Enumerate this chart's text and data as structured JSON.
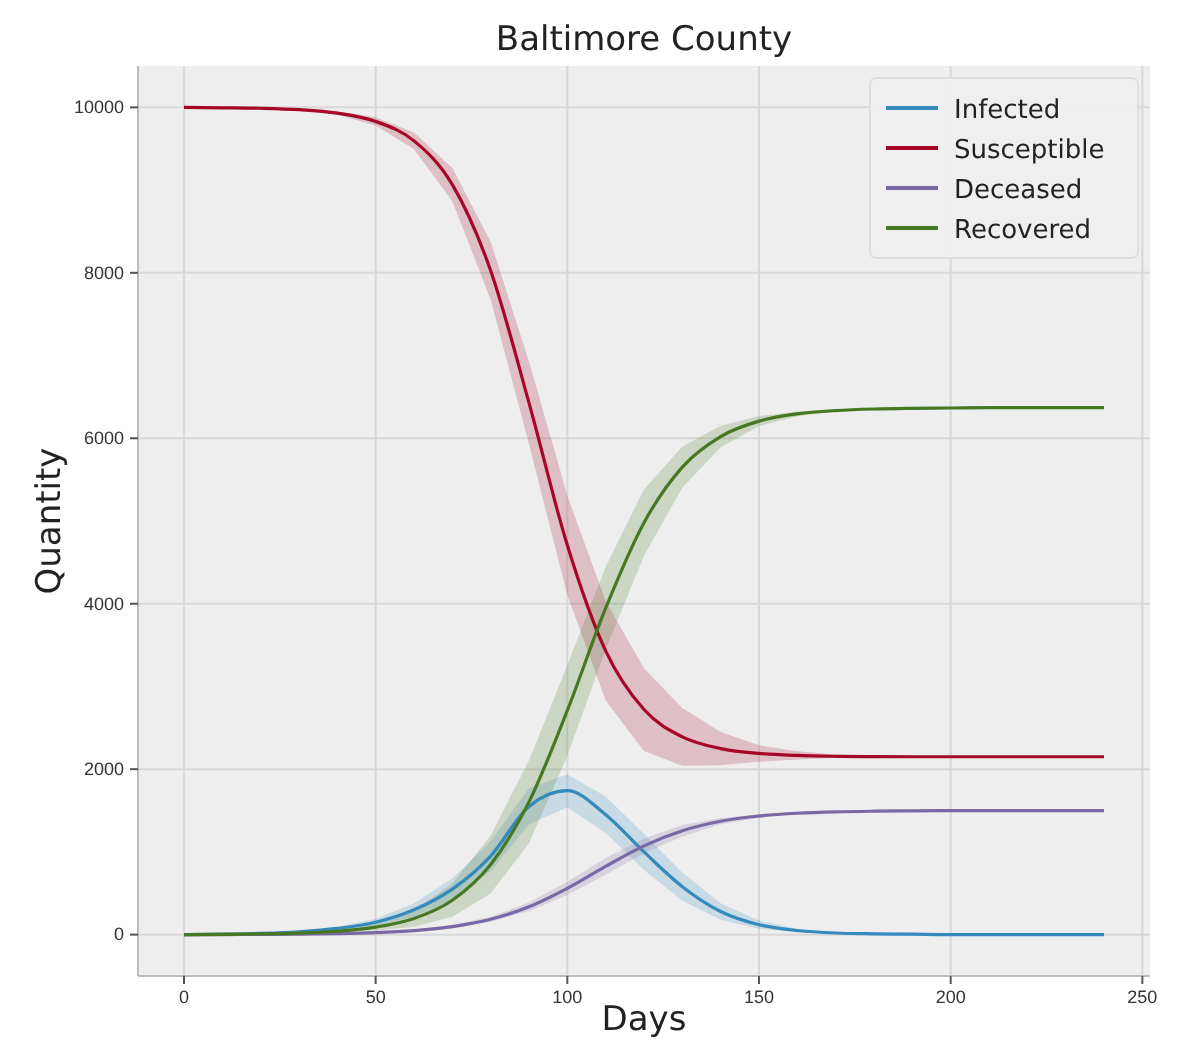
{
  "chart_data": {
    "type": "line",
    "title": "Baltimore County",
    "xlabel": "Days",
    "ylabel": "Quantity",
    "x": [
      0,
      10,
      20,
      30,
      40,
      50,
      60,
      70,
      80,
      90,
      100,
      110,
      120,
      130,
      140,
      150,
      160,
      170,
      180,
      190,
      200,
      210,
      220,
      230,
      240
    ],
    "xlim": [
      -12,
      252
    ],
    "xticks": [
      0,
      50,
      100,
      150,
      200,
      250
    ],
    "ylim": [
      -500,
      10500
    ],
    "yticks": [
      0,
      2000,
      4000,
      6000,
      8000,
      10000
    ],
    "grid": true,
    "legend": "top right",
    "line_style": "solid",
    "series": [
      {
        "name": "Infected",
        "color": "#348abd",
        "values": [
          0,
          5,
          15,
          35,
          75,
          150,
          300,
          550,
          950,
          1550,
          1740,
          1450,
          1000,
          580,
          280,
          120,
          50,
          20,
          10,
          5,
          0,
          0,
          0,
          0,
          0
        ],
        "lower": [
          0,
          5,
          10,
          25,
          55,
          110,
          220,
          420,
          770,
          1330,
          1540,
          1230,
          780,
          410,
          180,
          70,
          30,
          10,
          5,
          5,
          0,
          0,
          0,
          0,
          0
        ],
        "upper": [
          0,
          5,
          20,
          45,
          95,
          190,
          380,
          680,
          1130,
          1770,
          1940,
          1670,
          1220,
          750,
          380,
          170,
          70,
          30,
          15,
          5,
          0,
          0,
          0,
          0,
          0
        ]
      },
      {
        "name": "Susceptible",
        "color": "#a60628",
        "values": [
          10000,
          9995,
          9989,
          9972,
          9930,
          9830,
          9595,
          9066,
          8026,
          6428,
          4707,
          3430,
          2721,
          2391,
          2249,
          2190,
          2166,
          2156,
          2152,
          2150,
          2150,
          2150,
          2150,
          2150,
          2150
        ],
        "lower": [
          10000,
          9995,
          9984,
          9962,
          9910,
          9780,
          9495,
          8866,
          7676,
          5928,
          4107,
          2830,
          2221,
          2041,
          2049,
          2090,
          2116,
          2136,
          2142,
          2145,
          2150,
          2150,
          2150,
          2150,
          2150
        ],
        "upper": [
          10000,
          9995,
          9994,
          9982,
          9950,
          9880,
          9695,
          9266,
          8376,
          6928,
          5307,
          4030,
          3221,
          2741,
          2449,
          2290,
          2216,
          2176,
          2162,
          2155,
          2150,
          2150,
          2150,
          2150,
          2150
        ]
      },
      {
        "name": "Deceased",
        "color": "#7a68a6",
        "values": [
          0,
          1,
          3,
          6,
          12,
          24,
          49,
          97,
          186,
          337,
          560,
          825,
          1073,
          1256,
          1371,
          1434,
          1467,
          1484,
          1492,
          1496,
          1500,
          1500,
          1500,
          1500,
          1500
        ],
        "lower": [
          0,
          1,
          3,
          6,
          12,
          19,
          39,
          77,
          156,
          287,
          480,
          725,
          983,
          1186,
          1331,
          1414,
          1457,
          1479,
          1492,
          1496,
          1500,
          1500,
          1500,
          1500,
          1500
        ],
        "upper": [
          0,
          1,
          3,
          6,
          12,
          29,
          59,
          117,
          216,
          387,
          640,
          925,
          1163,
          1326,
          1411,
          1454,
          1477,
          1489,
          1492,
          1496,
          1500,
          1500,
          1500,
          1500,
          1500
        ]
      },
      {
        "name": "Recovered",
        "color": "#467821",
        "values": [
          0,
          4,
          9,
          19,
          42,
          91,
          196,
          416,
          848,
          1605,
          2710,
          3947,
          4980,
          5652,
          6021,
          6207,
          6295,
          6335,
          6354,
          6362,
          6366,
          6370,
          6370,
          6370,
          6370
        ],
        "lower": [
          0,
          4,
          9,
          14,
          32,
          51,
          96,
          216,
          498,
          1105,
          2160,
          3447,
          4580,
          5402,
          5891,
          6147,
          6265,
          6320,
          6349,
          6362,
          6366,
          6370,
          6370,
          6370,
          6370
        ],
        "upper": [
          0,
          4,
          9,
          24,
          52,
          131,
          296,
          616,
          1198,
          2105,
          3260,
          4447,
          5380,
          5902,
          6151,
          6267,
          6325,
          6350,
          6359,
          6362,
          6366,
          6370,
          6370,
          6370,
          6370
        ]
      }
    ]
  }
}
